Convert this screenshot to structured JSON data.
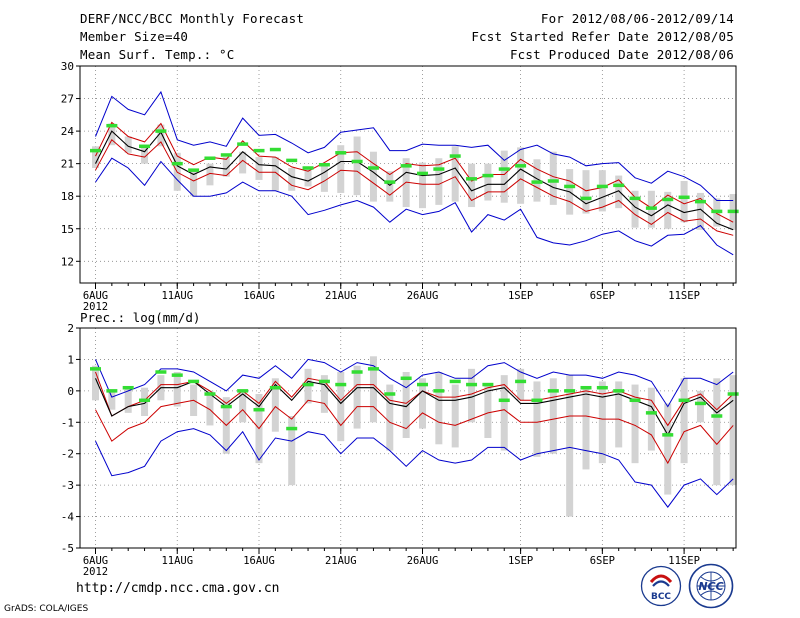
{
  "header": {
    "title": "DERF/NCC/BCC Monthly Forecast",
    "member_size": "Member Size=40",
    "variable": "Mean Surf. Temp.: °C",
    "for_period": "For 2012/08/06-2012/09/14",
    "fcst_started": "Fcst Started Refer Date 2012/08/05",
    "fcst_produced": "Fcst Produced Date 2012/08/06"
  },
  "footer": {
    "url": "http://cmdp.ncc.cma.gov.cn",
    "grads": "GrADS: COLA/IGES",
    "logo_bcc": "BCC",
    "logo_ncc": "NCC"
  },
  "colors": {
    "envelope": "#0000cc",
    "spread": "#cc0000",
    "mean": "#000000",
    "boxes": "#d3d3d3",
    "observed": "#33dd33",
    "grid": "#888888"
  },
  "chart_data": [
    {
      "type": "line",
      "title": "Mean Surf. Temp.: °C",
      "x_tick_labels": [
        "6AUG",
        "11AUG",
        "16AUG",
        "21AUG",
        "26AUG",
        "1SEP",
        "6SEP",
        "11SEP"
      ],
      "x_tick_days": [
        0,
        5,
        10,
        15,
        20,
        26,
        31,
        36
      ],
      "x_year_label": "2012",
      "n_days": 40,
      "ylim": [
        10,
        30
      ],
      "y_ticks": [
        12,
        15,
        18,
        21,
        24,
        27,
        30
      ],
      "y_tick_labels": [
        "12",
        "15",
        "18",
        "21",
        "24",
        "27",
        "30"
      ],
      "series": [
        {
          "name": "max",
          "values": [
            23.5,
            27.2,
            26.0,
            25.5,
            27.6,
            23.2,
            22.7,
            23.0,
            22.6,
            25.2,
            23.6,
            23.7,
            22.9,
            22.0,
            22.5,
            23.9,
            24.1,
            24.3,
            22.2,
            22.2,
            22.8,
            22.7,
            22.7,
            22.5,
            22.7,
            21.3,
            22.3,
            22.7,
            21.9,
            21.6,
            20.8,
            21.0,
            21.1,
            19.7,
            19.2,
            20.3,
            19.8,
            19.0,
            17.6,
            17.6
          ]
        },
        {
          "name": "upper",
          "values": [
            21.7,
            24.8,
            23.5,
            23.0,
            24.7,
            21.7,
            20.9,
            21.6,
            21.4,
            23.1,
            21.7,
            21.6,
            20.7,
            20.3,
            21.1,
            22.0,
            22.1,
            21.0,
            20.0,
            21.0,
            20.8,
            20.9,
            21.5,
            19.4,
            20.0,
            20.0,
            21.4,
            20.5,
            19.8,
            19.4,
            18.5,
            18.8,
            19.5,
            17.9,
            16.9,
            18.1,
            17.3,
            17.8,
            16.4,
            15.6
          ]
        },
        {
          "name": "mean",
          "values": [
            21.0,
            24.0,
            22.6,
            22.1,
            23.9,
            20.8,
            20.0,
            20.7,
            20.5,
            22.1,
            20.9,
            20.8,
            19.8,
            19.4,
            20.2,
            21.2,
            21.2,
            20.2,
            19.0,
            20.2,
            19.9,
            20.0,
            20.6,
            18.5,
            19.1,
            19.1,
            20.5,
            19.6,
            18.8,
            18.4,
            17.3,
            17.9,
            18.5,
            17.0,
            16.2,
            17.2,
            16.5,
            16.8,
            15.5,
            14.9
          ]
        },
        {
          "name": "lower",
          "values": [
            20.4,
            23.2,
            21.9,
            21.6,
            23.0,
            20.2,
            19.4,
            20.1,
            19.9,
            21.3,
            20.2,
            20.2,
            19.0,
            18.6,
            19.4,
            20.4,
            20.3,
            19.2,
            18.1,
            19.3,
            19.1,
            19.1,
            19.8,
            17.6,
            18.4,
            18.4,
            19.6,
            18.8,
            18.0,
            17.5,
            16.6,
            17.0,
            17.6,
            16.3,
            15.4,
            16.5,
            15.7,
            15.9,
            14.8,
            14.4
          ]
        },
        {
          "name": "min",
          "values": [
            19.3,
            21.5,
            20.6,
            19.0,
            21.2,
            19.5,
            18.0,
            18.0,
            18.3,
            19.3,
            18.5,
            18.5,
            18.0,
            16.3,
            16.7,
            17.2,
            17.6,
            17.0,
            15.6,
            16.8,
            16.3,
            16.6,
            17.4,
            14.7,
            16.3,
            15.8,
            16.8,
            14.2,
            13.7,
            13.5,
            13.9,
            14.5,
            14.8,
            13.9,
            13.4,
            14.4,
            14.5,
            15.3,
            13.5,
            12.6
          ]
        }
      ],
      "boxes": [
        [
          20.6,
          22.6
        ],
        [
          22.7,
          24.7
        ],
        [
          22.0,
          23.5
        ],
        [
          21.0,
          22.6
        ],
        [
          22.6,
          24.6
        ],
        [
          18.5,
          22.0
        ],
        [
          18.0,
          20.3
        ],
        [
          19.0,
          21.0
        ],
        [
          19.8,
          21.6
        ],
        [
          20.1,
          22.1
        ],
        [
          19.5,
          21.6
        ],
        [
          18.5,
          21.6
        ],
        [
          18.5,
          20.6
        ],
        [
          18.9,
          20.5
        ],
        [
          18.4,
          20.8
        ],
        [
          18.3,
          22.7
        ],
        [
          18.1,
          23.5
        ],
        [
          17.5,
          22.1
        ],
        [
          17.5,
          20.3
        ],
        [
          17.0,
          21.5
        ],
        [
          16.9,
          21.1
        ],
        [
          17.2,
          21.5
        ],
        [
          17.5,
          22.6
        ],
        [
          17.0,
          21.0
        ],
        [
          17.6,
          21.0
        ],
        [
          17.4,
          22.2
        ],
        [
          17.3,
          22.5
        ],
        [
          17.5,
          21.4
        ],
        [
          17.2,
          22.1
        ],
        [
          16.3,
          20.5
        ],
        [
          16.4,
          20.4
        ],
        [
          16.6,
          20.4
        ],
        [
          16.9,
          19.9
        ],
        [
          15.1,
          18.5
        ],
        [
          15.1,
          18.5
        ],
        [
          15.0,
          18.4
        ],
        [
          15.6,
          19.4
        ],
        [
          14.9,
          18.3
        ],
        [
          15.2,
          17.8
        ],
        [
          14.9,
          18.2
        ]
      ],
      "observed": [
        22.2,
        24.5,
        null,
        22.6,
        24.0,
        21.0,
        20.4,
        21.5,
        21.8,
        22.8,
        22.2,
        22.3,
        21.3,
        20.6,
        20.9,
        22.0,
        21.2,
        20.6,
        19.3,
        20.8,
        20.1,
        20.5,
        21.7,
        19.6,
        19.9,
        20.5,
        20.8,
        19.3,
        19.4,
        18.9,
        17.8,
        18.9,
        19.0,
        17.8,
        16.9,
        17.7,
        17.9,
        17.5,
        16.6,
        16.6
      ]
    },
    {
      "type": "line",
      "title": "Prec.: log(mm/d)",
      "x_tick_labels": [
        "6AUG",
        "11AUG",
        "16AUG",
        "21AUG",
        "26AUG",
        "1SEP",
        "6SEP",
        "11SEP"
      ],
      "x_tick_days": [
        0,
        5,
        10,
        15,
        20,
        26,
        31,
        36
      ],
      "x_year_label": "2012",
      "n_days": 40,
      "ylim": [
        -5,
        2
      ],
      "y_ticks": [
        -5,
        -4,
        -3,
        -2,
        -1,
        0,
        1,
        2
      ],
      "y_tick_labels": [
        "-5",
        "-4",
        "-3",
        "-2",
        "-1",
        "0",
        "1",
        "2"
      ],
      "series": [
        {
          "name": "max",
          "values": [
            1.0,
            -0.2,
            0.0,
            0.2,
            0.7,
            0.7,
            0.6,
            0.3,
            0.0,
            0.5,
            0.4,
            0.8,
            0.4,
            1.0,
            0.9,
            0.6,
            0.9,
            0.8,
            0.4,
            0.1,
            0.5,
            0.6,
            0.4,
            0.4,
            0.8,
            0.9,
            0.6,
            0.4,
            0.6,
            0.5,
            0.5,
            0.4,
            0.6,
            0.5,
            0.3,
            -0.5,
            0.4,
            0.4,
            0.2,
            0.6
          ]
        },
        {
          "name": "upper",
          "values": [
            0.6,
            -0.8,
            -0.5,
            -0.3,
            0.2,
            0.2,
            0.3,
            0.0,
            -0.4,
            0.0,
            -0.4,
            0.3,
            -0.2,
            0.4,
            0.3,
            -0.3,
            0.2,
            0.2,
            -0.3,
            -0.4,
            0.0,
            -0.2,
            -0.2,
            -0.1,
            0.1,
            0.2,
            -0.3,
            -0.3,
            -0.2,
            -0.1,
            0.0,
            -0.1,
            0.0,
            -0.2,
            -0.3,
            -1.1,
            -0.3,
            -0.1,
            -0.6,
            -0.1
          ]
        },
        {
          "name": "mean",
          "values": [
            0.4,
            -0.8,
            -0.5,
            -0.4,
            0.1,
            0.1,
            0.3,
            -0.1,
            -0.5,
            -0.1,
            -0.5,
            0.2,
            -0.3,
            0.3,
            0.2,
            -0.4,
            0.1,
            0.1,
            -0.4,
            -0.5,
            0.0,
            -0.3,
            -0.3,
            -0.2,
            0.0,
            0.1,
            -0.4,
            -0.4,
            -0.3,
            -0.2,
            -0.1,
            -0.2,
            -0.1,
            -0.3,
            -0.5,
            -1.4,
            -0.4,
            -0.2,
            -0.7,
            -0.3
          ]
        },
        {
          "name": "lower",
          "values": [
            -0.6,
            -1.6,
            -1.2,
            -1.0,
            -0.5,
            -0.4,
            -0.3,
            -0.6,
            -1.1,
            -0.6,
            -1.2,
            -0.5,
            -0.9,
            -0.3,
            -0.4,
            -1.1,
            -0.5,
            -0.5,
            -1.0,
            -1.2,
            -0.7,
            -1.0,
            -1.1,
            -0.9,
            -0.7,
            -0.6,
            -1.0,
            -1.0,
            -0.9,
            -0.8,
            -0.8,
            -0.9,
            -0.9,
            -1.1,
            -1.4,
            -2.3,
            -1.3,
            -1.1,
            -1.7,
            -1.1
          ]
        },
        {
          "name": "min",
          "values": [
            -1.6,
            -2.7,
            -2.6,
            -2.4,
            -1.6,
            -1.3,
            -1.2,
            -1.4,
            -1.9,
            -1.3,
            -2.2,
            -1.5,
            -1.6,
            -1.3,
            -1.4,
            -2.0,
            -1.5,
            -1.5,
            -1.9,
            -2.4,
            -1.9,
            -2.2,
            -2.3,
            -2.2,
            -1.8,
            -1.8,
            -2.2,
            -2.0,
            -1.9,
            -1.8,
            -1.9,
            -2.0,
            -2.2,
            -2.9,
            -3.0,
            -3.7,
            -3.0,
            -2.8,
            -3.3,
            -2.8
          ]
        }
      ],
      "boxes": [
        [
          -0.3,
          0.8
        ],
        [
          -0.6,
          0.0
        ],
        [
          -0.7,
          0.1
        ],
        [
          -0.8,
          0.1
        ],
        [
          -0.3,
          0.5
        ],
        [
          -0.5,
          0.6
        ],
        [
          -0.8,
          0.2
        ],
        [
          -1.1,
          0.0
        ],
        [
          -2.0,
          -0.2
        ],
        [
          -1.0,
          0.0
        ],
        [
          -2.3,
          -0.1
        ],
        [
          -1.3,
          0.4
        ],
        [
          -3.0,
          -0.8
        ],
        [
          -0.4,
          0.7
        ],
        [
          -0.7,
          0.5
        ],
        [
          -1.6,
          0.6
        ],
        [
          -1.2,
          0.8
        ],
        [
          -1.0,
          1.1
        ],
        [
          -1.9,
          0.2
        ],
        [
          -1.5,
          0.6
        ],
        [
          -1.2,
          0.4
        ],
        [
          -1.7,
          0.6
        ],
        [
          -1.8,
          0.2
        ],
        [
          -1.0,
          0.7
        ],
        [
          -1.5,
          0.2
        ],
        [
          -1.9,
          0.5
        ],
        [
          -0.3,
          0.7
        ],
        [
          -2.1,
          0.3
        ],
        [
          -2.0,
          0.4
        ],
        [
          -4.0,
          0.5
        ],
        [
          -2.5,
          0.1
        ],
        [
          -2.3,
          0.3
        ],
        [
          -1.8,
          0.3
        ],
        [
          -2.3,
          0.2
        ],
        [
          -1.9,
          0.1
        ],
        [
          -3.3,
          -0.4
        ],
        [
          -2.3,
          0.4
        ],
        [
          -1.0,
          0.0
        ],
        [
          -3.0,
          0.4
        ],
        [
          -3.0,
          0.5
        ]
      ],
      "observed": [
        0.7,
        0.0,
        0.1,
        -0.3,
        0.6,
        0.5,
        0.3,
        -0.1,
        -0.5,
        0.0,
        -0.6,
        0.1,
        -1.2,
        0.2,
        0.3,
        0.2,
        0.6,
        0.7,
        -0.1,
        0.4,
        0.2,
        0.0,
        0.3,
        0.2,
        0.2,
        -0.3,
        0.3,
        -0.3,
        0.0,
        0.0,
        0.1,
        0.1,
        0.0,
        -0.3,
        -0.7,
        -1.4,
        -0.3,
        -0.4,
        -0.8,
        -0.1
      ]
    }
  ]
}
